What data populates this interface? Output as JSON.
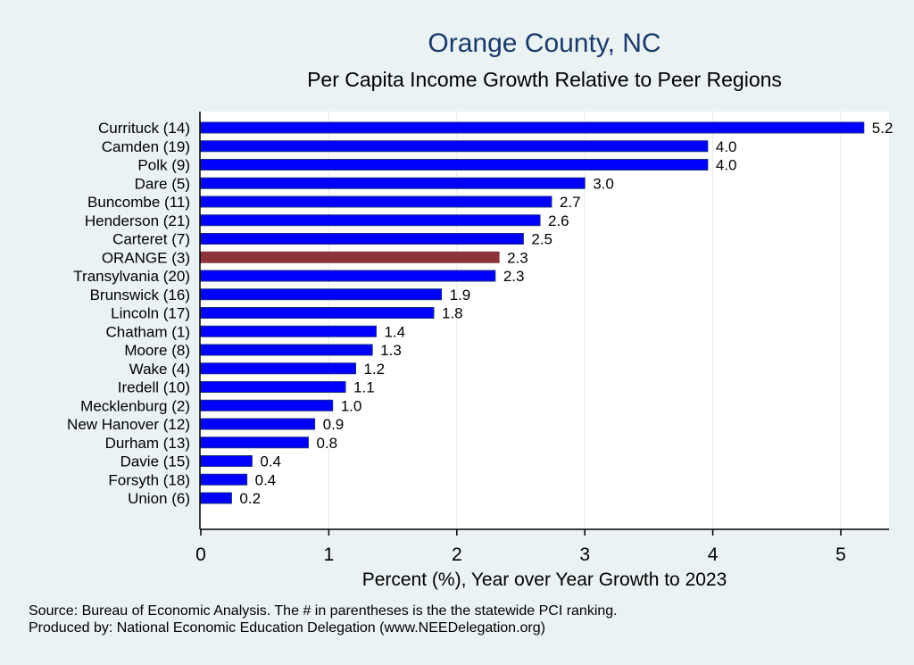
{
  "chart_data": {
    "type": "bar",
    "orientation": "horizontal",
    "title": "Orange County, NC",
    "subtitle": "Per Capita Income Growth Relative to Peer Regions",
    "xlabel": "Percent (%), Year over Year Growth to 2023",
    "ylabel": "",
    "xlim": [
      0,
      5.4
    ],
    "xticks": [
      0,
      1,
      2,
      3,
      4,
      5
    ],
    "grid": "vertical",
    "categories": [
      "Currituck (14)",
      "Camden (19)",
      "Polk  (9)",
      "Dare  (5)",
      "Buncombe (11)",
      "Henderson (21)",
      "Carteret  (7)",
      "ORANGE  (3)",
      "Transylvania (20)",
      "Brunswick (16)",
      "Lincoln (17)",
      "Chatham  (1)",
      "Moore  (8)",
      "Wake  (4)",
      "Iredell (10)",
      "Mecklenburg  (2)",
      "New Hanover (12)",
      "Durham (13)",
      "Davie (15)",
      "Forsyth (18)",
      "Union  (6)"
    ],
    "values": [
      5.18,
      3.96,
      3.96,
      3.0,
      2.74,
      2.65,
      2.52,
      2.33,
      2.3,
      1.88,
      1.82,
      1.37,
      1.34,
      1.21,
      1.13,
      1.03,
      0.89,
      0.84,
      0.4,
      0.36,
      0.24
    ],
    "data_labels": [
      "5.2",
      "4.0",
      "4.0",
      "3.0",
      "2.7",
      "2.6",
      "2.5",
      "2.3",
      "2.3",
      "1.9",
      "1.8",
      "1.4",
      "1.3",
      "1.2",
      "1.1",
      "1.0",
      "0.9",
      "0.8",
      "0.4",
      "0.4",
      "0.2"
    ],
    "highlight_index": 7,
    "colors": {
      "bar": "#0000ff",
      "bar_edge": "#1a2f80",
      "highlight": "#8b353b",
      "title": "#1a3a6b",
      "background": "#eaf2f3",
      "plot_background": "#ffffff"
    },
    "notes": [
      "Source: Bureau of Economic Analysis. The # in parentheses is the the statewide PCI ranking.",
      "Produced by: National Economic Education Delegation (www.NEEDelegation.org)"
    ]
  }
}
